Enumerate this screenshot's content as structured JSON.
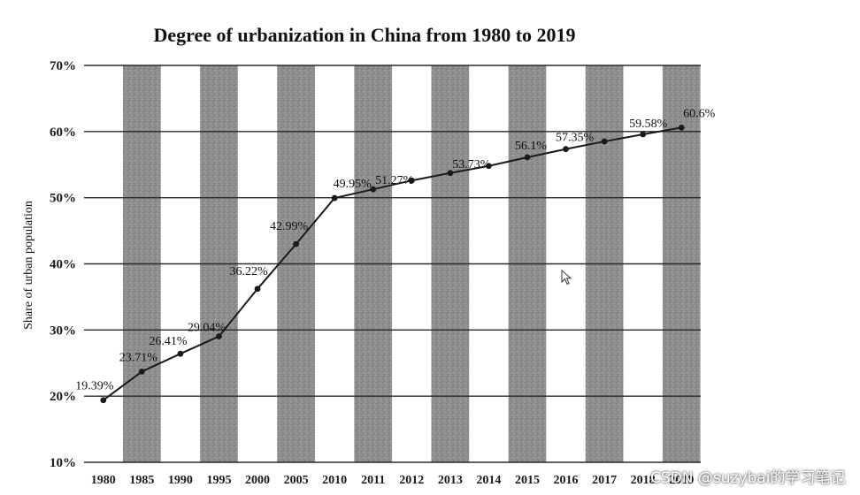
{
  "chart_data": {
    "type": "line",
    "title": "Degree of urbanization in China from 1980 to 2019",
    "xlabel": "",
    "ylabel": "Share of urban population",
    "ylim": [
      10,
      70
    ],
    "yticks": [
      "10%",
      "20%",
      "30%",
      "40%",
      "50%",
      "60%",
      "70%"
    ],
    "grid": true,
    "legend": "none",
    "categories": [
      "1980",
      "1985",
      "1990",
      "1995",
      "2000",
      "2005",
      "2010",
      "2011",
      "2012",
      "2013",
      "2014",
      "2015",
      "2016",
      "2017",
      "2018",
      "2019"
    ],
    "series": [
      {
        "values": [
          19.39,
          23.71,
          26.41,
          29.04,
          36.22,
          42.99,
          49.95,
          51.27,
          52.6,
          53.73,
          54.8,
          56.1,
          57.35,
          58.5,
          59.58,
          60.6
        ],
        "labels": [
          "19.39%",
          "23.71%",
          "26.41%",
          "29.04%",
          "36.22%",
          "42.99%",
          "49.95%",
          "51.27%",
          "",
          "53.73%",
          "",
          "56.1%",
          "57.35%",
          "",
          "59.58%",
          "60.6%"
        ]
      }
    ],
    "colors": {
      "line": "#1a1a1a",
      "shaded_band": "#8c8c8c",
      "grid": "#2a2a2a"
    }
  },
  "watermark": "CSDN @suzybai的学习笔记"
}
